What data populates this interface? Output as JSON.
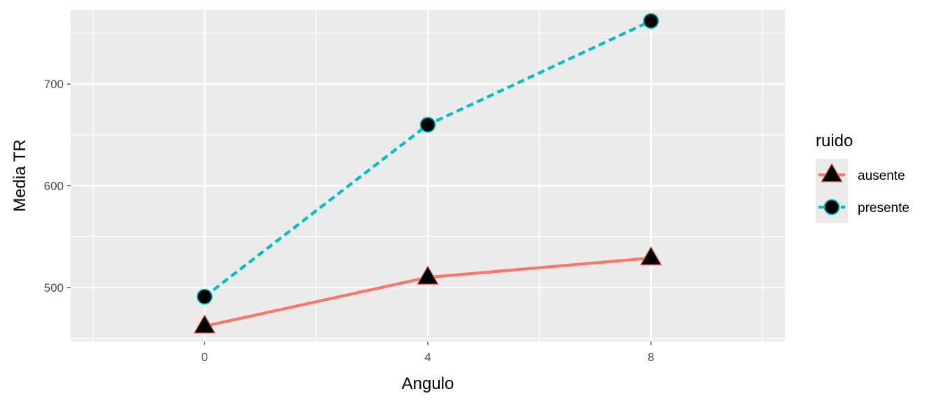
{
  "chart_data": {
    "type": "line",
    "xlabel": "Angulo",
    "ylabel": "Media TR",
    "x": [
      0,
      4,
      8
    ],
    "xlim": [
      -2.4,
      10.4
    ],
    "ylim": [
      447,
      773
    ],
    "x_ticks": [
      0,
      4,
      8
    ],
    "y_ticks": [
      500,
      600,
      700
    ],
    "grid": true,
    "legend": {
      "title": "ruido",
      "position": "right"
    },
    "series": [
      {
        "name": "ausente",
        "values": [
          462,
          510,
          529
        ],
        "color": "#F8766D",
        "line_style": "solid",
        "marker": "triangle"
      },
      {
        "name": "presente",
        "values": [
          491,
          660,
          762
        ],
        "color": "#00BFC4",
        "line_style": "dashed",
        "marker": "circle"
      }
    ],
    "colors": {
      "panel_background": "#EBEBEB",
      "grid": "#FFFFFF",
      "marker_fill": "#000000"
    }
  }
}
